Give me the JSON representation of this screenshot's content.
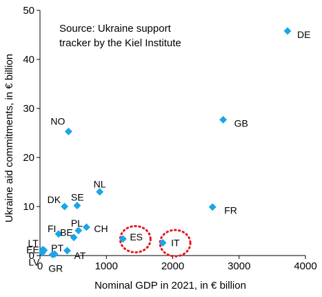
{
  "chart_data": {
    "type": "scatter",
    "xlabel": "Nominal GDP in 2021, in € billion",
    "ylabel": "Ukraine aid commitments, in € billion",
    "xlim": [
      0,
      4000
    ],
    "ylim": [
      0,
      50
    ],
    "xticks": [
      "0",
      "1000",
      "2000",
      "3000",
      "4000"
    ],
    "yticks": [
      "0",
      "10",
      "20",
      "30",
      "40",
      "50"
    ],
    "grid": false,
    "annotation": [
      "Source: Ukraine support",
      "tracker by the Kiel Institute"
    ],
    "marker_color": "#1aa6e8",
    "highlight_color": "#e8141b",
    "highlighted": [
      "ES",
      "IT"
    ],
    "points": [
      {
        "label": "DE",
        "x": 3730,
        "y": 45.8
      },
      {
        "label": "GB",
        "x": 2760,
        "y": 27.7
      },
      {
        "label": "FR",
        "x": 2600,
        "y": 9.9
      },
      {
        "label": "IT",
        "x": 1850,
        "y": 2.6
      },
      {
        "label": "ES",
        "x": 1250,
        "y": 3.4
      },
      {
        "label": "NO",
        "x": 430,
        "y": 25.3
      },
      {
        "label": "NL",
        "x": 900,
        "y": 13.0
      },
      {
        "label": "SE",
        "x": 560,
        "y": 10.2
      },
      {
        "label": "DK",
        "x": 370,
        "y": 10.0
      },
      {
        "label": "PL",
        "x": 580,
        "y": 5.1
      },
      {
        "label": "CH",
        "x": 700,
        "y": 5.8
      },
      {
        "label": "FI",
        "x": 280,
        "y": 4.4
      },
      {
        "label": "BE",
        "x": 510,
        "y": 3.7
      },
      {
        "label": "AT",
        "x": 410,
        "y": 1.0
      },
      {
        "label": "EE",
        "x": 40,
        "y": 1.2
      },
      {
        "label": "LT",
        "x": 60,
        "y": 1.1
      },
      {
        "label": "LV",
        "x": 35,
        "y": 0.6
      },
      {
        "label": "PT",
        "x": 220,
        "y": 0.3
      },
      {
        "label": "GR",
        "x": 190,
        "y": 0.2
      }
    ]
  }
}
